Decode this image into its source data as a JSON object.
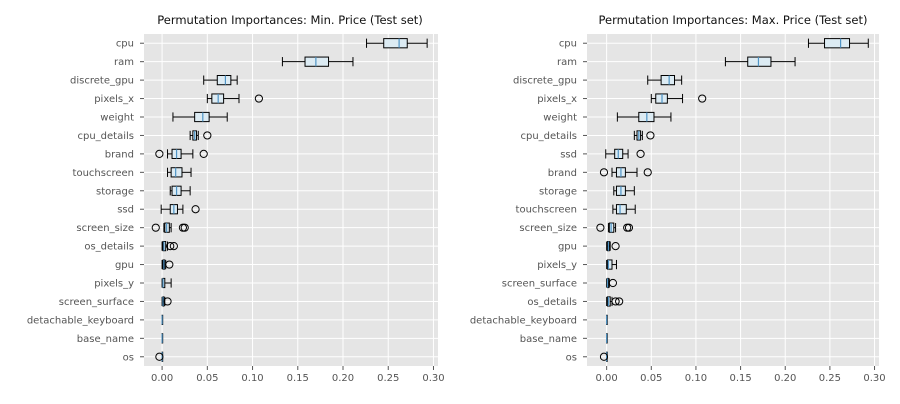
{
  "chart_data": [
    {
      "type": "boxplot",
      "title": "Permutation Importances: Min. Price (Test set)",
      "xlim": [
        -0.02,
        0.305
      ],
      "xticks": [
        "0.00",
        "0.05",
        "0.10",
        "0.15",
        "0.20",
        "0.25",
        "0.30"
      ],
      "grid": true,
      "features": [
        {
          "name": "cpu",
          "whislo": 0.226,
          "q1": 0.245,
          "med": 0.262,
          "q3": 0.271,
          "whishi": 0.293,
          "fliers": []
        },
        {
          "name": "ram",
          "whislo": 0.133,
          "q1": 0.158,
          "med": 0.17,
          "q3": 0.184,
          "whishi": 0.211,
          "fliers": []
        },
        {
          "name": "discrete_gpu",
          "whislo": 0.046,
          "q1": 0.061,
          "med": 0.07,
          "q3": 0.076,
          "whishi": 0.083,
          "fliers": []
        },
        {
          "name": "pixels_x",
          "whislo": 0.05,
          "q1": 0.055,
          "med": 0.062,
          "q3": 0.068,
          "whishi": 0.085,
          "fliers": [
            0.107
          ]
        },
        {
          "name": "weight",
          "whislo": 0.012,
          "q1": 0.036,
          "med": 0.045,
          "q3": 0.052,
          "whishi": 0.072,
          "fliers": []
        },
        {
          "name": "cpu_details",
          "whislo": 0.031,
          "q1": 0.034,
          "med": 0.036,
          "q3": 0.038,
          "whishi": 0.04,
          "fliers": [
            0.05
          ]
        },
        {
          "name": "brand",
          "whislo": 0.006,
          "q1": 0.011,
          "med": 0.016,
          "q3": 0.021,
          "whishi": 0.034,
          "fliers": [
            -0.003,
            0.046
          ]
        },
        {
          "name": "touchscreen",
          "whislo": 0.006,
          "q1": 0.01,
          "med": 0.015,
          "q3": 0.022,
          "whishi": 0.032,
          "fliers": []
        },
        {
          "name": "storage",
          "whislo": 0.009,
          "q1": 0.011,
          "med": 0.016,
          "q3": 0.021,
          "whishi": 0.031,
          "fliers": []
        },
        {
          "name": "ssd",
          "whislo": -0.001,
          "q1": 0.009,
          "med": 0.013,
          "q3": 0.017,
          "whishi": 0.023,
          "fliers": [
            0.037
          ]
        },
        {
          "name": "screen_size",
          "whislo": 0.002,
          "q1": 0.003,
          "med": 0.005,
          "q3": 0.008,
          "whishi": 0.01,
          "fliers": [
            -0.007,
            0.023,
            0.025
          ]
        },
        {
          "name": "os_details",
          "whislo": 0.0,
          "q1": 0.001,
          "med": 0.002,
          "q3": 0.004,
          "whishi": 0.006,
          "fliers": [
            0.009,
            0.013
          ]
        },
        {
          "name": "gpu",
          "whislo": 0.0,
          "q1": 0.001,
          "med": 0.002,
          "q3": 0.003,
          "whishi": 0.004,
          "fliers": [
            0.008
          ]
        },
        {
          "name": "pixels_y",
          "whislo": 0.0,
          "q1": 0.001,
          "med": 0.001,
          "q3": 0.003,
          "whishi": 0.01,
          "fliers": []
        },
        {
          "name": "screen_surface",
          "whislo": 0.0,
          "q1": 0.001,
          "med": 0.001,
          "q3": 0.002,
          "whishi": 0.003,
          "fliers": [
            0.006
          ]
        },
        {
          "name": "detachable_keyboard",
          "whislo": 0.0,
          "q1": 0.0,
          "med": 0.0,
          "q3": 0.0,
          "whishi": 0.0,
          "fliers": []
        },
        {
          "name": "base_name",
          "whislo": 0.0,
          "q1": 0.0,
          "med": 0.0,
          "q3": 0.0,
          "whishi": 0.0,
          "fliers": []
        },
        {
          "name": "os",
          "whislo": 0.0,
          "q1": 0.0,
          "med": 0.0,
          "q3": 0.0,
          "whishi": 0.0,
          "fliers": [
            -0.003
          ]
        }
      ]
    },
    {
      "type": "boxplot",
      "title": "Permutation Importances: Max. Price (Test set)",
      "xlim": [
        -0.022,
        0.305
      ],
      "xticks": [
        "0.00",
        "0.05",
        "0.10",
        "0.15",
        "0.20",
        "0.25",
        "0.30"
      ],
      "grid": true,
      "features": [
        {
          "name": "cpu",
          "whislo": 0.226,
          "q1": 0.244,
          "med": 0.262,
          "q3": 0.272,
          "whishi": 0.293,
          "fliers": []
        },
        {
          "name": "ram",
          "whislo": 0.133,
          "q1": 0.158,
          "med": 0.17,
          "q3": 0.184,
          "whishi": 0.211,
          "fliers": []
        },
        {
          "name": "discrete_gpu",
          "whislo": 0.046,
          "q1": 0.061,
          "med": 0.07,
          "q3": 0.076,
          "whishi": 0.084,
          "fliers": []
        },
        {
          "name": "pixels_x",
          "whislo": 0.05,
          "q1": 0.055,
          "med": 0.062,
          "q3": 0.068,
          "whishi": 0.085,
          "fliers": [
            0.107
          ]
        },
        {
          "name": "weight",
          "whislo": 0.012,
          "q1": 0.036,
          "med": 0.045,
          "q3": 0.053,
          "whishi": 0.072,
          "fliers": []
        },
        {
          "name": "cpu_details",
          "whislo": 0.031,
          "q1": 0.034,
          "med": 0.036,
          "q3": 0.038,
          "whishi": 0.04,
          "fliers": [
            0.049
          ]
        },
        {
          "name": "ssd",
          "whislo": -0.001,
          "q1": 0.009,
          "med": 0.013,
          "q3": 0.018,
          "whishi": 0.024,
          "fliers": [
            0.038
          ]
        },
        {
          "name": "brand",
          "whislo": 0.006,
          "q1": 0.011,
          "med": 0.016,
          "q3": 0.021,
          "whishi": 0.034,
          "fliers": [
            -0.003,
            0.046
          ]
        },
        {
          "name": "storage",
          "whislo": 0.008,
          "q1": 0.011,
          "med": 0.016,
          "q3": 0.021,
          "whishi": 0.031,
          "fliers": []
        },
        {
          "name": "touchscreen",
          "whislo": 0.007,
          "q1": 0.011,
          "med": 0.015,
          "q3": 0.022,
          "whishi": 0.032,
          "fliers": []
        },
        {
          "name": "screen_size",
          "whislo": 0.002,
          "q1": 0.003,
          "med": 0.005,
          "q3": 0.008,
          "whishi": 0.01,
          "fliers": [
            -0.007,
            0.023,
            0.025
          ]
        },
        {
          "name": "gpu",
          "whislo": 0.0,
          "q1": 0.001,
          "med": 0.002,
          "q3": 0.003,
          "whishi": 0.004,
          "fliers": [
            0.01
          ]
        },
        {
          "name": "pixels_y",
          "whislo": 0.0,
          "q1": 0.001,
          "med": 0.002,
          "q3": 0.006,
          "whishi": 0.011,
          "fliers": []
        },
        {
          "name": "screen_surface",
          "whislo": 0.0,
          "q1": 0.001,
          "med": 0.001,
          "q3": 0.002,
          "whishi": 0.003,
          "fliers": [
            0.007
          ]
        },
        {
          "name": "os_details",
          "whislo": 0.0,
          "q1": 0.001,
          "med": 0.002,
          "q3": 0.004,
          "whishi": 0.006,
          "fliers": [
            0.01,
            0.014
          ]
        },
        {
          "name": "detachable_keyboard",
          "whislo": 0.0,
          "q1": 0.0,
          "med": 0.0,
          "q3": 0.0,
          "whishi": 0.0,
          "fliers": []
        },
        {
          "name": "base_name",
          "whislo": 0.0,
          "q1": 0.0,
          "med": 0.0,
          "q3": 0.0,
          "whishi": 0.0,
          "fliers": []
        },
        {
          "name": "os",
          "whislo": 0.0,
          "q1": 0.0,
          "med": 0.0,
          "q3": 0.0,
          "whishi": 0.0,
          "fliers": [
            -0.003
          ]
        }
      ]
    }
  ],
  "colors": {
    "axes_bg": "#e5e5e5",
    "grid": "#ffffff",
    "box_fill": "#dcebf3",
    "box_edge": "#000000",
    "median": "#4f94c5",
    "text": "#555555",
    "title": "#111111"
  }
}
